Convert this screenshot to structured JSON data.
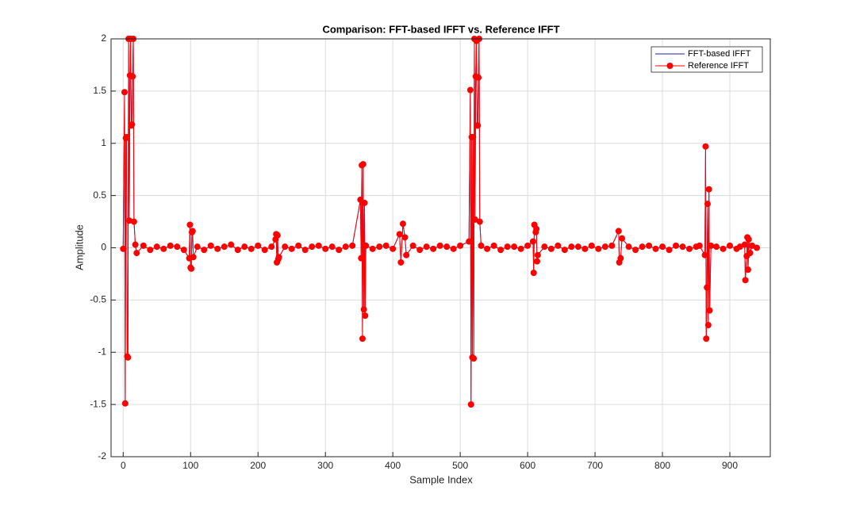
{
  "chart_data": {
    "type": "line",
    "title": "Comparison: FFT-based IFFT vs. Reference IFFT",
    "x_label": "Sample Index",
    "y_label": "Amplitude",
    "xlim": [
      -18,
      960
    ],
    "ylim": [
      -2,
      2
    ],
    "xticks": [
      0,
      100,
      200,
      300,
      400,
      500,
      600,
      700,
      800,
      900
    ],
    "yticks": [
      -2,
      -1.5,
      -1,
      -0.5,
      0,
      0.5,
      1,
      1.5,
      2
    ],
    "grid": true,
    "legend": "top-right",
    "x": [
      0,
      2,
      3,
      4,
      5,
      6,
      7,
      8,
      9,
      10,
      11,
      12,
      13,
      14,
      15,
      16,
      18,
      20,
      30,
      40,
      50,
      60,
      70,
      80,
      90,
      98,
      99,
      100,
      101,
      102,
      103,
      104,
      110,
      120,
      130,
      140,
      150,
      160,
      170,
      180,
      190,
      200,
      210,
      220,
      226,
      227,
      228,
      229,
      230,
      231,
      240,
      250,
      260,
      270,
      280,
      290,
      300,
      310,
      320,
      330,
      340,
      352,
      353,
      354,
      355,
      356,
      357,
      358,
      359,
      360,
      370,
      380,
      390,
      400,
      410,
      412,
      415,
      418,
      420,
      430,
      440,
      450,
      460,
      470,
      480,
      490,
      500,
      513,
      515,
      516,
      517,
      518,
      519,
      520,
      521,
      522,
      523,
      524,
      525,
      526,
      527,
      528,
      529,
      531,
      540,
      550,
      560,
      570,
      580,
      590,
      600,
      608,
      609,
      610,
      612,
      613,
      614,
      615,
      625,
      635,
      645,
      655,
      665,
      675,
      685,
      695,
      705,
      715,
      725,
      735,
      736,
      738,
      740,
      750,
      760,
      770,
      780,
      790,
      800,
      810,
      820,
      830,
      840,
      850,
      855,
      863,
      864,
      865,
      866,
      867,
      868,
      869,
      870,
      872,
      880,
      890,
      900,
      910,
      915,
      922,
      923,
      925,
      926,
      927,
      928,
      930,
      933,
      940
    ],
    "series": [
      {
        "name": "FFT-based IFFT",
        "color": "#1f1fa8",
        "values": [
          -0.01,
          1.49,
          -1.49,
          1.05,
          1.06,
          -1.04,
          -1.05,
          2,
          0.26,
          1.65,
          2,
          1.17,
          1.18,
          1.64,
          2,
          0.25,
          0.03,
          -0.05,
          0.02,
          -0.02,
          0.01,
          -0.01,
          0.02,
          0.01,
          -0.02,
          -0.1,
          0.22,
          -0.19,
          -0.2,
          0.15,
          0.16,
          -0.09,
          0.01,
          -0.02,
          0.02,
          -0.01,
          0.01,
          0.03,
          -0.02,
          0.01,
          -0.01,
          0.02,
          -0.02,
          0.01,
          0.08,
          0.13,
          -0.14,
          0.12,
          -0.11,
          -0.09,
          0.01,
          -0.01,
          0.02,
          -0.02,
          0.01,
          0.02,
          -0.01,
          0.01,
          -0.02,
          0.01,
          0.02,
          0.46,
          -0.1,
          0.79,
          -0.87,
          0.8,
          -0.59,
          0.43,
          -0.65,
          0.02,
          -0.01,
          0.01,
          0.02,
          -0.01,
          0.13,
          -0.14,
          0.23,
          0.1,
          -0.07,
          0.02,
          -0.02,
          0.01,
          -0.01,
          0.02,
          0.01,
          -0.01,
          0.02,
          0.06,
          1.51,
          -1.5,
          1.06,
          -1.05,
          1.06,
          -1.06,
          2,
          0.27,
          1.64,
          1.98,
          1.17,
          1.17,
          1.63,
          2,
          0.25,
          0.02,
          -0.01,
          0.02,
          -0.02,
          0.01,
          0.01,
          -0.01,
          0.02,
          0.06,
          -0.24,
          0.22,
          0.15,
          0.18,
          -0.13,
          -0.07,
          0.01,
          -0.01,
          0.02,
          -0.02,
          0.01,
          0.01,
          -0.01,
          0.02,
          -0.01,
          0.01,
          0.02,
          0.16,
          -0.14,
          -0.1,
          0.09,
          0.01,
          -0.02,
          0.01,
          0.02,
          -0.01,
          0.01,
          -0.02,
          0.02,
          0.01,
          -0.01,
          0.01,
          0.02,
          -0.07,
          0.97,
          -0.87,
          -0.38,
          0.42,
          -0.74,
          0.56,
          -0.6,
          0.02,
          0.01,
          -0.01,
          0.02,
          -0.01,
          0.01,
          0.03,
          -0.31,
          -0.08,
          0.1,
          -0.21,
          0.08,
          -0.05,
          0.02,
          0
        ]
      },
      {
        "name": "Reference IFFT",
        "color": "#ff0000",
        "marker": "circle",
        "values": [
          -0.01,
          1.49,
          -1.49,
          1.05,
          1.06,
          -1.04,
          -1.05,
          2,
          0.26,
          1.65,
          2,
          1.17,
          1.18,
          1.64,
          2,
          0.25,
          0.03,
          -0.05,
          0.02,
          -0.02,
          0.01,
          -0.01,
          0.02,
          0.01,
          -0.02,
          -0.1,
          0.22,
          -0.19,
          -0.2,
          0.15,
          0.16,
          -0.09,
          0.01,
          -0.02,
          0.02,
          -0.01,
          0.01,
          0.03,
          -0.02,
          0.01,
          -0.01,
          0.02,
          -0.02,
          0.01,
          0.08,
          0.13,
          -0.14,
          0.12,
          -0.11,
          -0.09,
          0.01,
          -0.01,
          0.02,
          -0.02,
          0.01,
          0.02,
          -0.01,
          0.01,
          -0.02,
          0.01,
          0.02,
          0.46,
          -0.1,
          0.79,
          -0.87,
          0.8,
          -0.59,
          0.43,
          -0.65,
          0.02,
          -0.01,
          0.01,
          0.02,
          -0.01,
          0.13,
          -0.14,
          0.23,
          0.1,
          -0.07,
          0.02,
          -0.02,
          0.01,
          -0.01,
          0.02,
          0.01,
          -0.01,
          0.02,
          0.06,
          1.51,
          -1.5,
          1.06,
          -1.05,
          1.06,
          -1.06,
          2,
          0.27,
          1.64,
          1.98,
          1.17,
          1.17,
          1.63,
          2,
          0.25,
          0.02,
          -0.01,
          0.02,
          -0.02,
          0.01,
          0.01,
          -0.01,
          0.02,
          0.06,
          -0.24,
          0.22,
          0.15,
          0.18,
          -0.13,
          -0.07,
          0.01,
          -0.01,
          0.02,
          -0.02,
          0.01,
          0.01,
          -0.01,
          0.02,
          -0.01,
          0.01,
          0.02,
          0.16,
          -0.14,
          -0.1,
          0.09,
          0.01,
          -0.02,
          0.01,
          0.02,
          -0.01,
          0.01,
          -0.02,
          0.02,
          0.01,
          -0.01,
          0.01,
          0.02,
          -0.07,
          0.97,
          -0.87,
          -0.38,
          0.42,
          -0.74,
          0.56,
          -0.6,
          0.02,
          0.01,
          -0.01,
          0.02,
          -0.01,
          0.01,
          0.03,
          -0.31,
          -0.08,
          0.1,
          -0.21,
          0.08,
          -0.05,
          0.02,
          0
        ]
      }
    ]
  }
}
